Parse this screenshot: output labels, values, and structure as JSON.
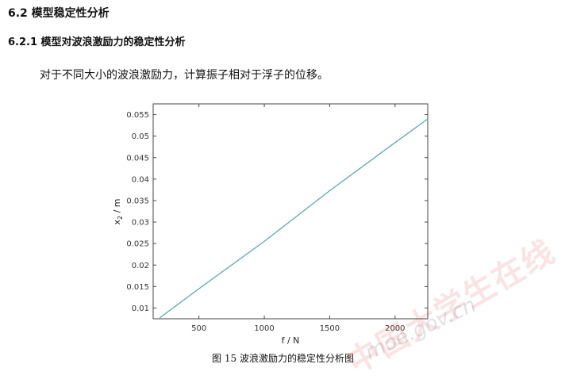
{
  "section": {
    "heading": "6.2 模型稳定性分析"
  },
  "subsection": {
    "heading": "6.2.1 模型对波浪激励力的稳定性分析"
  },
  "paragraph": "对于不同大小的波浪激励力，计算振子相对于浮子的位移。",
  "figure": {
    "caption": "图 15 波浪激励力的稳定性分析图"
  },
  "watermark": {
    "text_cn": "中国大学生在线",
    "text_url": "moe.gov.cn"
  },
  "chart_data": {
    "type": "line",
    "xlabel": "f / N",
    "ylabel": "x",
    "ylabel_subscript": "2",
    "ylabel_unit": " / m",
    "xlim": [
      150,
      2250
    ],
    "ylim": [
      0.0075,
      0.0575
    ],
    "xticks": [
      500,
      1000,
      1500,
      2000
    ],
    "yticks": [
      0.01,
      0.015,
      0.02,
      0.025,
      0.03,
      0.035,
      0.04,
      0.045,
      0.05,
      0.055
    ],
    "xtick_labels": [
      "500",
      "1000",
      "1500",
      "2000"
    ],
    "ytick_labels": [
      "0.01",
      "0.015",
      "0.02",
      "0.025",
      "0.03",
      "0.035",
      "0.04",
      "0.045",
      "0.05",
      "0.055"
    ],
    "grid": false,
    "color": "#5aa8b0",
    "series": [
      {
        "x": [
          200,
          500,
          1000,
          1500,
          2000,
          2250
        ],
        "y": [
          0.0077,
          0.0145,
          0.0255,
          0.0373,
          0.0485,
          0.054
        ]
      }
    ]
  }
}
